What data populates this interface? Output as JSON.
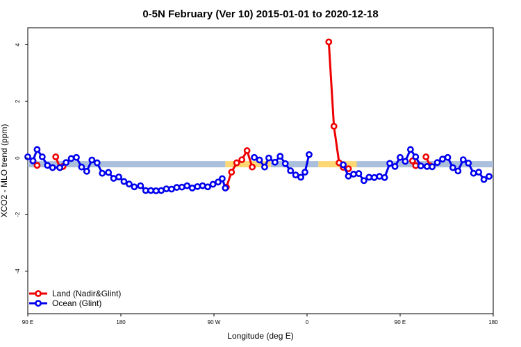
{
  "chart_data": {
    "type": "line",
    "title": "0-5N February (Ver 10)   2015-01-01 to 2020-12-18",
    "xlabel": "Longitude (deg E)",
    "ylabel": "XCO2 - MLO trend (ppm)",
    "x_axis_note": "x values expressed as degrees east of 90 E along the plotted axis (0 to 450)",
    "xlim": [
      0,
      450
    ],
    "ylim": [
      -5.5,
      4.6
    ],
    "x_ticks": [
      {
        "value": 0,
        "label": "90 E"
      },
      {
        "value": 90,
        "label": "180"
      },
      {
        "value": 180,
        "label": "90 W"
      },
      {
        "value": 270,
        "label": "0"
      },
      {
        "value": 360,
        "label": "90 E"
      },
      {
        "value": 450,
        "label": "180"
      }
    ],
    "y_ticks": [
      {
        "value": 4,
        "label": "4"
      },
      {
        "value": 2,
        "label": "2"
      },
      {
        "value": 0,
        "label": "0"
      },
      {
        "value": -2,
        "label": "-2"
      },
      {
        "value": -4,
        "label": "-4"
      }
    ],
    "grid": false,
    "legend_position": "bottom-left",
    "bands": [
      {
        "name": "Ocean (Glint)",
        "color": "#a9bfdc",
        "segments": [
          [
            0,
            191
          ],
          [
            235,
            281
          ],
          [
            318,
            450
          ]
        ],
        "y": -0.22,
        "thickness": 0.22
      },
      {
        "name": "Land (Nadir&Glint)",
        "color": "#fdd774",
        "segments": [
          [
            191,
            235
          ],
          [
            281,
            318
          ]
        ],
        "y": -0.22,
        "thickness": 0.22
      }
    ],
    "series": [
      {
        "name": "Land (Nadir&Glint)",
        "color": "#ee0000",
        "segments": [
          [
            [
              5,
              -0.1
            ],
            [
              9,
              -0.26
            ]
          ],
          [
            [
              27,
              0.04
            ],
            [
              31,
              -0.34
            ],
            [
              34,
              -0.3
            ]
          ],
          [
            [
              192,
              -1.03
            ],
            [
              197,
              -0.5
            ],
            [
              202,
              -0.17
            ],
            [
              207,
              -0.06
            ],
            [
              212,
              0.26
            ],
            [
              217,
              -0.32
            ]
          ],
          [
            [
              291,
              4.1
            ],
            [
              296,
              1.12
            ],
            [
              301,
              -0.17
            ],
            [
              305,
              -0.33
            ],
            [
              310,
              -0.38
            ]
          ],
          [
            [
              372,
              -0.1
            ],
            [
              375,
              -0.27
            ]
          ],
          [
            [
              385,
              0.04
            ],
            [
              389,
              -0.28
            ]
          ]
        ]
      },
      {
        "name": "Ocean (Glint)",
        "color": "#0000ee",
        "segments": [
          [
            [
              0,
              0.04
            ],
            [
              5,
              -0.1
            ],
            [
              9,
              0.3
            ],
            [
              14,
              0.04
            ],
            [
              19,
              -0.26
            ],
            [
              24,
              -0.34
            ],
            [
              31,
              -0.34
            ],
            [
              37,
              -0.16
            ],
            [
              42,
              -0.02
            ],
            [
              47,
              0.02
            ],
            [
              52,
              -0.32
            ],
            [
              57,
              -0.47
            ],
            [
              62,
              -0.07
            ],
            [
              67,
              -0.17
            ],
            [
              72,
              -0.54
            ],
            [
              78,
              -0.51
            ],
            [
              83,
              -0.72
            ],
            [
              88,
              -0.67
            ],
            [
              93,
              -0.83
            ],
            [
              98,
              -0.92
            ],
            [
              103,
              -1.02
            ],
            [
              109,
              -0.98
            ],
            [
              114,
              -1.15
            ],
            [
              119,
              -1.15
            ],
            [
              124,
              -1.16
            ],
            [
              129,
              -1.15
            ],
            [
              134,
              -1.09
            ],
            [
              139,
              -1.1
            ],
            [
              144,
              -1.04
            ],
            [
              149,
              -1.03
            ],
            [
              154,
              -0.98
            ],
            [
              159,
              -1.06
            ],
            [
              164,
              -1.01
            ],
            [
              169,
              -0.98
            ],
            [
              174,
              -1.02
            ],
            [
              179,
              -0.93
            ],
            [
              184,
              -0.85
            ],
            [
              188,
              -0.73
            ],
            [
              191,
              -1.06
            ]
          ],
          [
            [
              219,
              0.02
            ],
            [
              224,
              -0.07
            ],
            [
              229,
              -0.32
            ],
            [
              233,
              0.0
            ],
            [
              239,
              -0.15
            ],
            [
              244,
              0.06
            ],
            [
              249,
              -0.2
            ],
            [
              254,
              -0.45
            ],
            [
              259,
              -0.6
            ],
            [
              264,
              -0.68
            ],
            [
              268,
              -0.5
            ],
            [
              272,
              0.12
            ]
          ],
          [
            [
              305,
              -0.24
            ],
            [
              310,
              -0.64
            ],
            [
              315,
              -0.57
            ],
            [
              320,
              -0.55
            ],
            [
              325,
              -0.8
            ],
            [
              330,
              -0.68
            ],
            [
              335,
              -0.69
            ],
            [
              340,
              -0.65
            ],
            [
              345,
              -0.69
            ],
            [
              350,
              -0.19
            ],
            [
              355,
              -0.3
            ],
            [
              360,
              0.02
            ],
            [
              365,
              -0.12
            ],
            [
              370,
              0.3
            ],
            [
              375,
              0.04
            ],
            [
              380,
              -0.28
            ],
            [
              386,
              -0.3
            ],
            [
              391,
              -0.31
            ],
            [
              396,
              -0.16
            ],
            [
              401,
              -0.04
            ],
            [
              406,
              0.02
            ],
            [
              411,
              -0.34
            ],
            [
              416,
              -0.46
            ],
            [
              421,
              -0.06
            ],
            [
              426,
              -0.18
            ],
            [
              431,
              -0.54
            ],
            [
              436,
              -0.5
            ],
            [
              441,
              -0.76
            ],
            [
              446,
              -0.65
            ]
          ]
        ]
      }
    ]
  }
}
